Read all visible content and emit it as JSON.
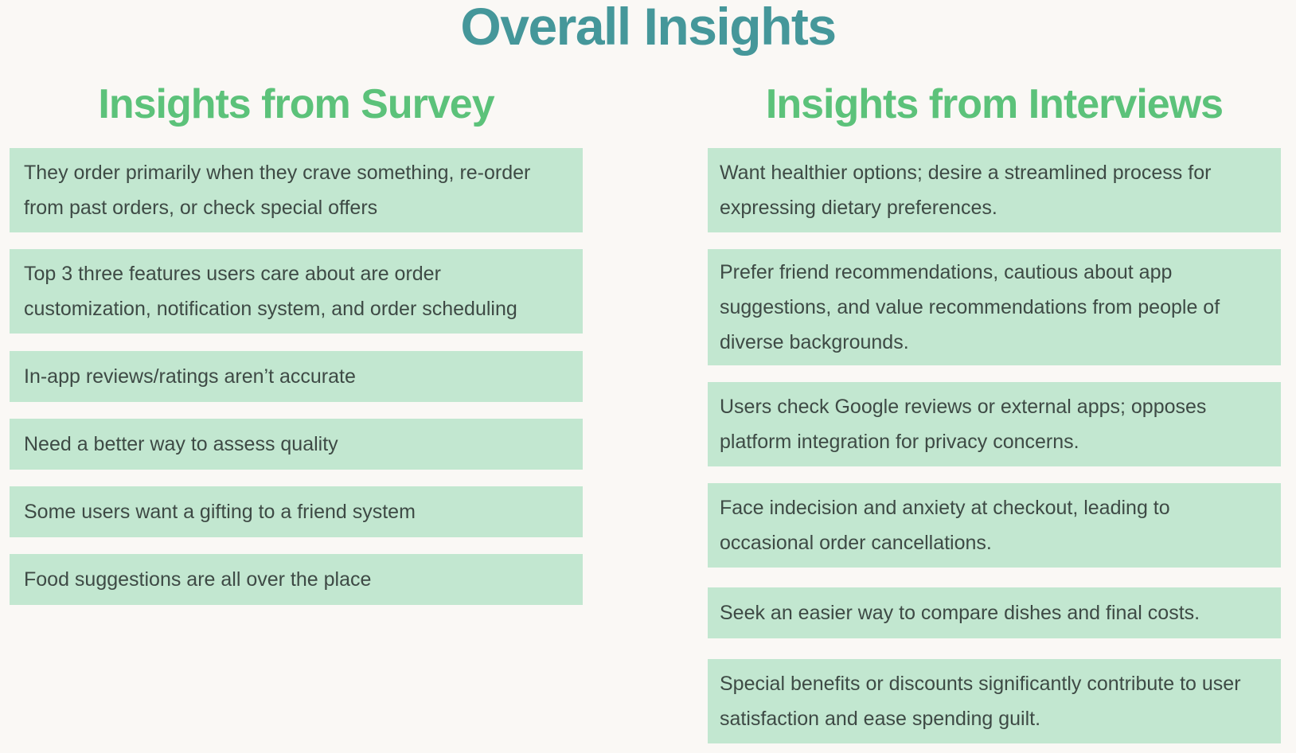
{
  "title": "Overall Insights",
  "survey": {
    "heading_prefix": "Insights from ",
    "heading_emphasis": "Survey",
    "items": [
      "They order primarily when they crave something, re-order from past orders, or check special offers",
      "Top 3 three features users care about are order customization, notification system, and order scheduling",
      "In-app reviews/ratings aren’t accurate",
      "Need a better way to assess quality",
      "Some users want a gifting to a friend system",
      "Food suggestions are all over the place"
    ]
  },
  "interviews": {
    "heading_prefix": "Insights from ",
    "heading_emphasis": "Interviews",
    "items": [
      "Want healthier options; desire a streamlined process for expressing dietary preferences.",
      "Prefer friend recommendations, cautious about app suggestions, and value recommendations from people of diverse backgrounds.",
      "Users check Google reviews or external apps; opposes platform integration for privacy concerns.",
      "Face indecision and anxiety at checkout, leading to occasional order cancellations.",
      "Seek an easier way to compare dishes and final costs.",
      "Special benefits or discounts significantly contribute to user satisfaction and ease spending guilt."
    ]
  },
  "colors": {
    "title": "#45979a",
    "heading": "#5cc27a",
    "card_bg": "#c2e7d0",
    "card_text": "#3e4a45",
    "page_bg": "#faf8f5"
  }
}
